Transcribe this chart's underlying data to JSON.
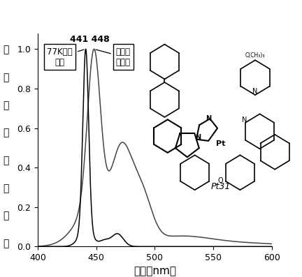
{
  "xlabel": "波长（nm）",
  "ylabel_chars": [
    "归",
    "一",
    "化",
    "的",
    "发",
    "光",
    "强",
    "度"
  ],
  "xlim": [
    400,
    600
  ],
  "ylim": [
    0.0,
    1.08
  ],
  "xticks": [
    400,
    450,
    500,
    550,
    600
  ],
  "yticks": [
    0.0,
    0.2,
    0.4,
    0.6,
    0.8,
    1.0
  ],
  "peak_label": "441 448",
  "annotation_77k": "77K发射\n光谱",
  "annotation_rt": "室温发\n射光谱",
  "pt31_label": "Pt31",
  "figsize": [
    4.32,
    3.97
  ],
  "dpi": 100,
  "curve_77k_color": "black",
  "curve_rt_color": "black",
  "curve_rt_lw": 1.0,
  "curve_77k_lw": 1.0
}
